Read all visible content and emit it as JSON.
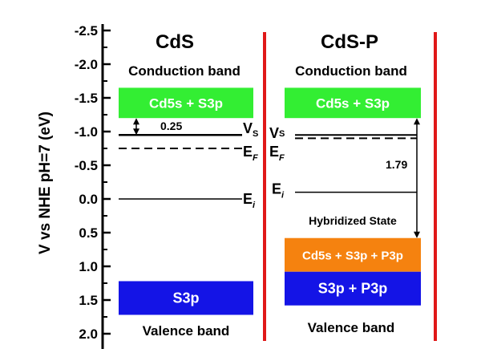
{
  "axis": {
    "label": "V vs NHE pH=7 (eV)",
    "ticks": [
      "-2.5",
      "-2.0",
      "-1.5",
      "-1.0",
      "-0.5",
      "0.0",
      "0.5",
      "1.0",
      "1.5",
      "2.0"
    ],
    "range": [
      -2.5,
      2.0
    ]
  },
  "left_panel": {
    "title": "CdS",
    "conduction_label": "Conduction band",
    "cb_box": {
      "text": "Cd5s + S3p",
      "color": "#33ee33",
      "top_v": -1.65,
      "bottom_v": -1.2
    },
    "vs_level": -0.95,
    "vs_label": "V",
    "vs_sub": "S",
    "ef_level": -0.75,
    "ef_label": "E",
    "ef_sub": "F",
    "ei_level": 0.0,
    "ei_label": "E",
    "ei_sub": "i",
    "gap_value": "0.25",
    "vb_box": {
      "text": "S3p",
      "color": "#1414e6",
      "top_v": 1.22,
      "bottom_v": 1.72
    },
    "valence_label": "Valence band"
  },
  "right_panel": {
    "title": "CdS-P",
    "conduction_label": "Conduction band",
    "cb_box": {
      "text": "Cd5s + S3p",
      "color": "#33ee33",
      "top_v": -1.65,
      "bottom_v": -1.2
    },
    "vs_level": -0.95,
    "vs_label": "V",
    "vs_sub": "S",
    "ef_level": -0.9,
    "ef_label": "E",
    "ef_sub": "F",
    "ei_level": -0.1,
    "ei_label": "E",
    "ei_sub": "i",
    "gap_value": "1.79",
    "hybrid_label": "Hybridized State",
    "hybrid_box": {
      "text": "Cd5s + S3p + P3p",
      "color": "#f5820f",
      "top_v": 0.58,
      "bottom_v": 1.08
    },
    "vb_box": {
      "text": "S3p + P3p",
      "color": "#1414e6",
      "top_v": 1.08,
      "bottom_v": 1.58
    },
    "valence_label": "Valence band"
  },
  "colors": {
    "divider": "#e01818",
    "axis": "#000000",
    "box_text": "#ffffff"
  }
}
